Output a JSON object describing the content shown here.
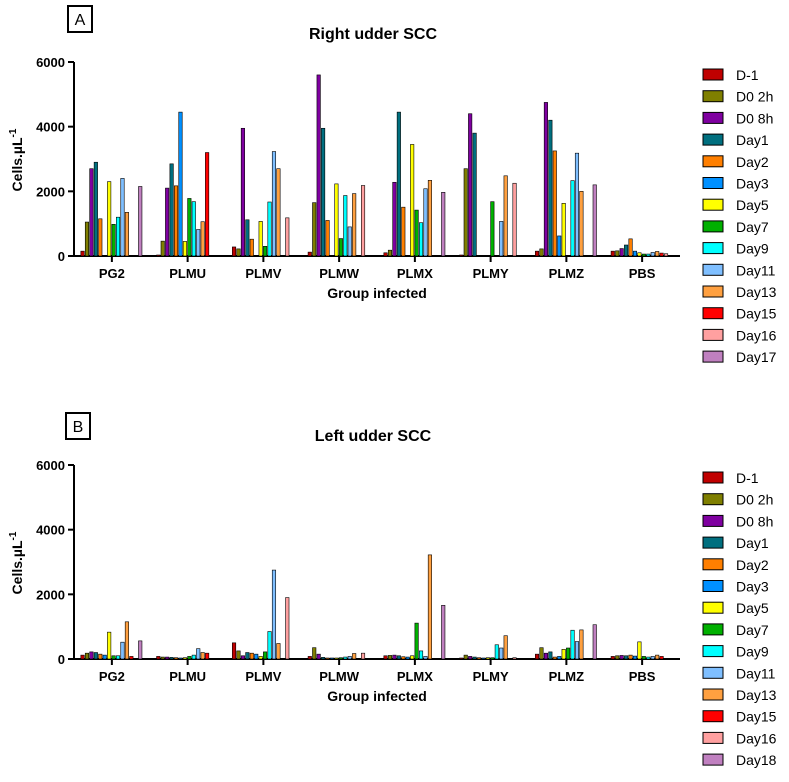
{
  "series_colors": [
    "#c00000",
    "#7f7f00",
    "#7f00a0",
    "#006f7f",
    "#ff7f00",
    "#0090ff",
    "#ffff00",
    "#00b000",
    "#00ffff",
    "#7fbfff",
    "#ffa040",
    "#ff0000",
    "#ffa0a0",
    "#c080c0"
  ],
  "chart_data": [
    {
      "type": "bar",
      "panel_label": "A",
      "title": "Right udder SCC",
      "xlabel": "Group infected",
      "ylabel": "Cells.µL",
      "ylabel_sup": "-1",
      "ylim": [
        0,
        6000
      ],
      "yticks": [
        0,
        2000,
        4000,
        6000
      ],
      "categories": [
        "PG2",
        "PLMU",
        "PLMV",
        "PLMW",
        "PLMX",
        "PLMY",
        "PLMZ",
        "PBS"
      ],
      "legend_position": "right",
      "series": [
        {
          "name": "D-1",
          "values": [
            150,
            30,
            280,
            120,
            100,
            20,
            150,
            150
          ]
        },
        {
          "name": "D0 2h",
          "values": [
            1050,
            460,
            220,
            1650,
            180,
            2700,
            220,
            160
          ]
        },
        {
          "name": "D0 8h",
          "values": [
            2700,
            2100,
            3950,
            5600,
            2280,
            4400,
            4750,
            230
          ]
        },
        {
          "name": "Day1",
          "values": [
            2900,
            2850,
            1120,
            3950,
            4450,
            3800,
            4200,
            340
          ]
        },
        {
          "name": "Day2",
          "values": [
            1150,
            2170,
            520,
            1100,
            1510,
            0,
            3250,
            530
          ]
        },
        {
          "name": "Day3",
          "values": [
            0,
            4450,
            0,
            0,
            0,
            0,
            620,
            150
          ]
        },
        {
          "name": "Day5",
          "values": [
            2300,
            450,
            1070,
            2230,
            3450,
            0,
            1630,
            100
          ]
        },
        {
          "name": "Day7",
          "values": [
            980,
            1780,
            300,
            540,
            1420,
            1680,
            0,
            60
          ]
        },
        {
          "name": "Day9",
          "values": [
            1200,
            1680,
            1670,
            1870,
            1030,
            0,
            2330,
            60
          ]
        },
        {
          "name": "Day11",
          "values": [
            2400,
            820,
            3230,
            900,
            2080,
            1070,
            3180,
            110
          ]
        },
        {
          "name": "Day13",
          "values": [
            1350,
            1060,
            2700,
            1930,
            2340,
            2480,
            2000,
            140
          ]
        },
        {
          "name": "Day15",
          "values": [
            0,
            3200,
            0,
            0,
            0,
            0,
            0,
            90
          ]
        },
        {
          "name": "Day16",
          "values": [
            0,
            0,
            1180,
            2180,
            0,
            2250,
            0,
            70
          ]
        },
        {
          "name": "Day17",
          "values": [
            2150,
            0,
            0,
            0,
            1970,
            0,
            2200,
            0
          ]
        }
      ]
    },
    {
      "type": "bar",
      "panel_label": "B",
      "title": "Left udder SCC",
      "xlabel": "Group infected",
      "ylabel": "Cells.µL",
      "ylabel_sup": "-1",
      "ylim": [
        0,
        6000
      ],
      "yticks": [
        0,
        2000,
        4000,
        6000
      ],
      "categories": [
        "PG2",
        "PLMU",
        "PLMV",
        "PLMW",
        "PLMX",
        "PLMY",
        "PLMZ",
        "PBS"
      ],
      "legend_position": "right",
      "series": [
        {
          "name": "D-1",
          "values": [
            120,
            80,
            500,
            80,
            100,
            20,
            150,
            80
          ]
        },
        {
          "name": "D0 2h",
          "values": [
            180,
            60,
            250,
            350,
            110,
            120,
            350,
            100
          ]
        },
        {
          "name": "D0 8h",
          "values": [
            220,
            60,
            100,
            150,
            120,
            80,
            180,
            110
          ]
        },
        {
          "name": "Day1",
          "values": [
            200,
            50,
            200,
            50,
            100,
            60,
            220,
            100
          ]
        },
        {
          "name": "Day2",
          "values": [
            150,
            40,
            180,
            20,
            70,
            40,
            60,
            120
          ]
        },
        {
          "name": "Day3",
          "values": [
            120,
            30,
            150,
            20,
            60,
            30,
            80,
            90
          ]
        },
        {
          "name": "Day5",
          "values": [
            830,
            40,
            80,
            30,
            100,
            40,
            300,
            530
          ]
        },
        {
          "name": "Day7",
          "values": [
            100,
            80,
            220,
            40,
            1110,
            40,
            340,
            80
          ]
        },
        {
          "name": "Day9",
          "values": [
            100,
            120,
            850,
            60,
            250,
            440,
            890,
            60
          ]
        },
        {
          "name": "Day11",
          "values": [
            520,
            320,
            2750,
            80,
            80,
            340,
            540,
            80
          ]
        },
        {
          "name": "Day13",
          "values": [
            1150,
            200,
            480,
            170,
            3220,
            720,
            900,
            120
          ]
        },
        {
          "name": "Day15",
          "values": [
            80,
            180,
            0,
            0,
            0,
            0,
            0,
            80
          ]
        },
        {
          "name": "Day16",
          "values": [
            0,
            0,
            1900,
            180,
            0,
            40,
            0,
            0
          ]
        },
        {
          "name": "Day18",
          "values": [
            560,
            0,
            0,
            0,
            1660,
            0,
            1060,
            0
          ]
        }
      ]
    }
  ]
}
